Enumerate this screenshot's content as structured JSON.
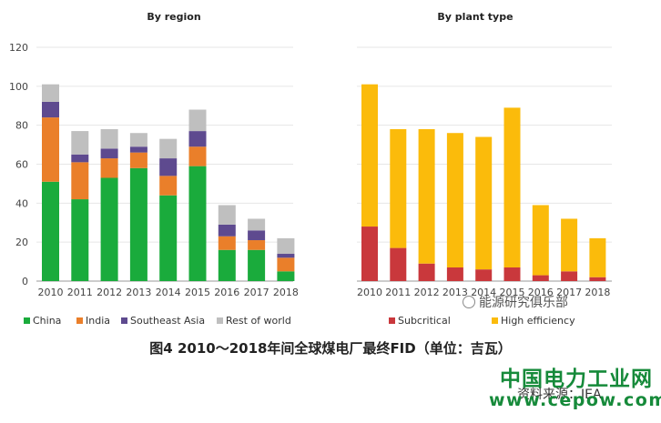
{
  "chart_data": [
    {
      "type": "bar",
      "stacked": true,
      "title": "By region",
      "categories": [
        "2010",
        "2011",
        "2012",
        "2013",
        "2014",
        "2015",
        "2016",
        "2017",
        "2018"
      ],
      "ylim": [
        0,
        120
      ],
      "yticks": [
        "0",
        "20",
        "40",
        "60",
        "80",
        "100",
        "120"
      ],
      "grid": true,
      "legend_position": "bottom",
      "series": [
        {
          "name": "China",
          "color": "#1aab3c",
          "values": [
            51,
            42,
            53,
            58,
            44,
            59,
            16,
            16,
            5
          ]
        },
        {
          "name": "India",
          "color": "#ea7f2a",
          "values": [
            33,
            19,
            10,
            8,
            10,
            10,
            7,
            5,
            7
          ]
        },
        {
          "name": "Southeast Asia",
          "color": "#5e4a8f",
          "values": [
            8,
            4,
            5,
            3,
            9,
            8,
            6,
            5,
            2
          ]
        },
        {
          "name": "Rest of world",
          "color": "#bfbfbf",
          "values": [
            9,
            12,
            10,
            7,
            10,
            11,
            10,
            6,
            8
          ]
        }
      ]
    },
    {
      "type": "bar",
      "stacked": true,
      "title": "By plant type",
      "categories": [
        "2010",
        "2011",
        "2012",
        "2013",
        "2014",
        "2015",
        "2016",
        "2017",
        "2018"
      ],
      "ylim": [
        0,
        120
      ],
      "grid": true,
      "legend_position": "bottom",
      "series": [
        {
          "name": "Subcritical",
          "color": "#c9383c",
          "values": [
            28,
            17,
            9,
            7,
            6,
            7,
            3,
            5,
            2
          ]
        },
        {
          "name": "High efficiency",
          "color": "#fbbb0b",
          "values": [
            73,
            61,
            69,
            69,
            68,
            82,
            36,
            27,
            20
          ]
        }
      ]
    }
  ],
  "caption": "图4  2010～2018年间全球煤电厂最终FID（单位：吉瓦）",
  "watermark_text": "能源研究俱乐部",
  "brand_name": "中国电力工业网",
  "source_text": "资料来源：IEA",
  "brand_url": "www.cepow.com"
}
